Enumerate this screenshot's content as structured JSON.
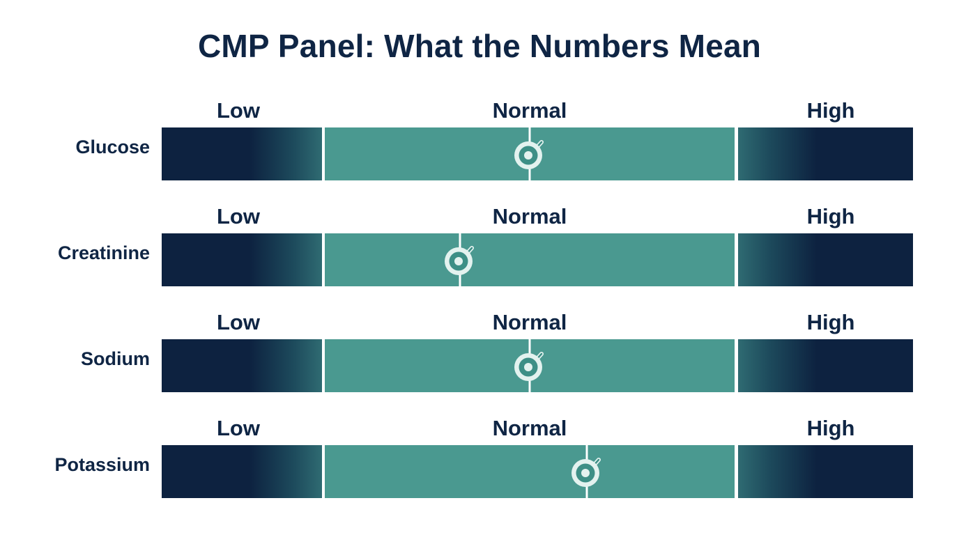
{
  "title": "CMP Panel: What the Numbers Mean",
  "zones": {
    "low": "Low",
    "normal": "Normal",
    "high": "High"
  },
  "tests": [
    {
      "name": "Glucose",
      "level": 0.5
    },
    {
      "name": "Creatinine",
      "level": 0.33
    },
    {
      "name": "Sodium",
      "level": 0.5
    },
    {
      "name": "Potassium",
      "level": 0.64
    }
  ],
  "colors": {
    "title": "#0f2544",
    "out_of_range": "#0d2240",
    "normal_range": "#4a9990",
    "marker": "#e3f2ef"
  }
}
